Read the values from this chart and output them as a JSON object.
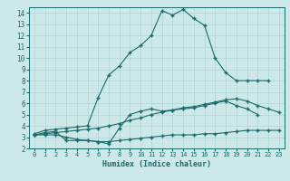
{
  "xlabel": "Humidex (Indice chaleur)",
  "ylabel": "",
  "bg_color": "#cce8e8",
  "line_color": "#1a6b6b",
  "grid_color": "#b0d4d4",
  "xlim": [
    -0.5,
    23.5
  ],
  "ylim": [
    2,
    14.5
  ],
  "xticks": [
    0,
    1,
    2,
    3,
    4,
    5,
    6,
    7,
    8,
    9,
    10,
    11,
    12,
    13,
    14,
    15,
    16,
    17,
    18,
    19,
    20,
    21,
    22,
    23
  ],
  "yticks": [
    2,
    3,
    4,
    5,
    6,
    7,
    8,
    9,
    10,
    11,
    12,
    13,
    14
  ],
  "curve_max": {
    "x": [
      0,
      1,
      2,
      3,
      4,
      5,
      6,
      7,
      8,
      9,
      10,
      11,
      12,
      13,
      14,
      15,
      16,
      17,
      18,
      19,
      20,
      21,
      22
    ],
    "y": [
      3.3,
      3.6,
      3.7,
      3.8,
      3.9,
      4.0,
      6.5,
      8.5,
      9.3,
      10.5,
      11.1,
      12.0,
      14.2,
      13.8,
      14.3,
      13.5,
      12.9,
      10.0,
      8.7,
      8.0,
      8.0,
      8.0,
      8.0
    ]
  },
  "curve_mean": {
    "x": [
      0,
      1,
      2,
      3,
      4,
      5,
      6,
      7,
      8,
      9,
      10,
      11,
      12,
      13,
      14,
      15,
      16,
      17,
      18,
      19,
      20,
      21,
      22,
      23
    ],
    "y": [
      3.2,
      3.3,
      3.4,
      3.5,
      3.6,
      3.7,
      3.8,
      4.0,
      4.2,
      4.5,
      4.7,
      5.0,
      5.2,
      5.4,
      5.6,
      5.7,
      5.9,
      6.1,
      6.3,
      6.4,
      6.2,
      5.8,
      5.5,
      5.2
    ]
  },
  "curve_min": {
    "x": [
      0,
      1,
      2,
      3,
      4,
      5,
      6,
      7,
      8,
      9,
      10,
      11,
      12,
      13,
      14,
      15,
      16,
      17,
      18,
      19,
      20,
      21,
      22,
      23
    ],
    "y": [
      3.2,
      3.2,
      3.2,
      3.0,
      2.8,
      2.7,
      2.6,
      2.6,
      2.7,
      2.8,
      2.9,
      3.0,
      3.1,
      3.2,
      3.2,
      3.2,
      3.3,
      3.3,
      3.4,
      3.5,
      3.6,
      3.6,
      3.6,
      3.6
    ]
  },
  "curve_extra": {
    "x": [
      0,
      1,
      2,
      3,
      4,
      5,
      6,
      7,
      8,
      9,
      10,
      11,
      12,
      13,
      14,
      15,
      16,
      17,
      18,
      19,
      20,
      21,
      22,
      23
    ],
    "y": [
      3.2,
      3.4,
      3.5,
      2.7,
      2.7,
      2.7,
      2.6,
      2.4,
      3.8,
      5.0,
      5.3,
      5.5,
      5.3,
      5.4,
      5.5,
      5.6,
      5.8,
      6.0,
      6.2,
      5.8,
      5.5,
      5.0,
      null,
      null
    ]
  }
}
